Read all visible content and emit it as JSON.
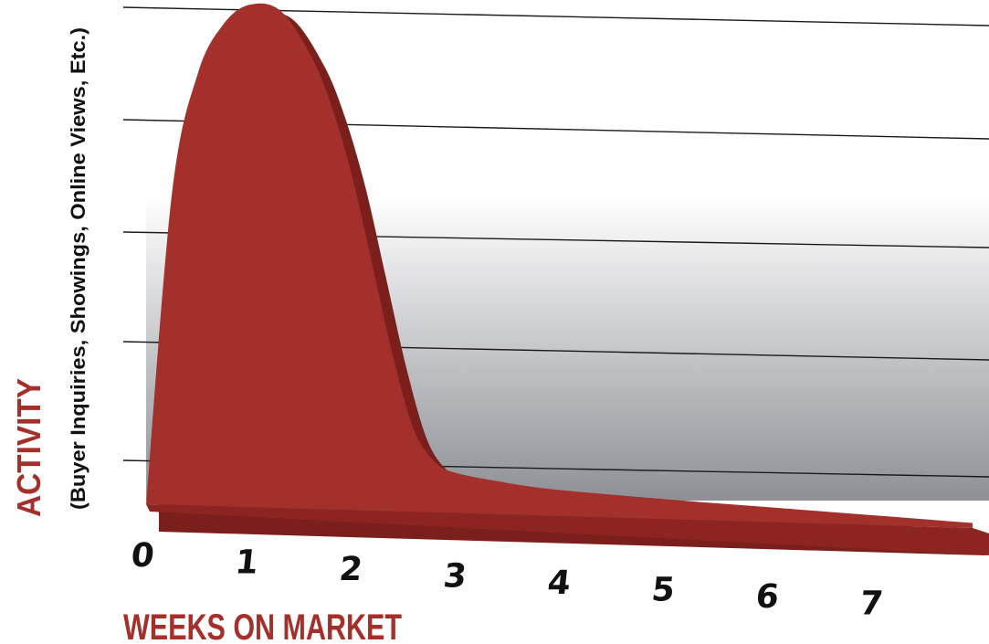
{
  "chart_data": {
    "type": "area",
    "title": "",
    "xlabel": "WEEKS ON MARKET",
    "ylabel": "ACTIVITY",
    "ylabel_sub": "(Buyer Inquiries, Showings, Online Views, Etc.)",
    "x_ticks": [
      "0",
      "1",
      "2",
      "3",
      "4",
      "5",
      "6",
      "7"
    ],
    "xlim": [
      0,
      8
    ],
    "ylim": [
      0,
      100
    ],
    "grid": true,
    "legend": "none",
    "series": [
      {
        "values": [
          [
            0,
            0
          ],
          [
            0.25,
            62
          ],
          [
            0.5,
            86
          ],
          [
            0.75,
            96
          ],
          [
            1,
            100
          ],
          [
            1.3,
            99
          ],
          [
            1.6,
            90
          ],
          [
            1.8,
            80
          ],
          [
            2,
            66
          ],
          [
            2.2,
            48
          ],
          [
            2.4,
            30
          ],
          [
            2.6,
            16
          ],
          [
            2.8,
            10
          ],
          [
            3,
            8
          ],
          [
            3.5,
            6.3
          ],
          [
            4,
            5.2
          ],
          [
            5,
            4
          ],
          [
            6,
            3
          ],
          [
            7,
            2
          ],
          [
            8,
            1
          ]
        ]
      }
    ],
    "colors": {
      "area": "#a4302c",
      "area_side": "#7a1f1b",
      "area_bottom": "#8c2521",
      "axis_title": "#a4302c",
      "axis_subtitle": "#111111",
      "tick": "#111111",
      "grid": "#1a1a1a",
      "bg_dark": "#8e9096",
      "bg_light": "#ffffff"
    }
  }
}
